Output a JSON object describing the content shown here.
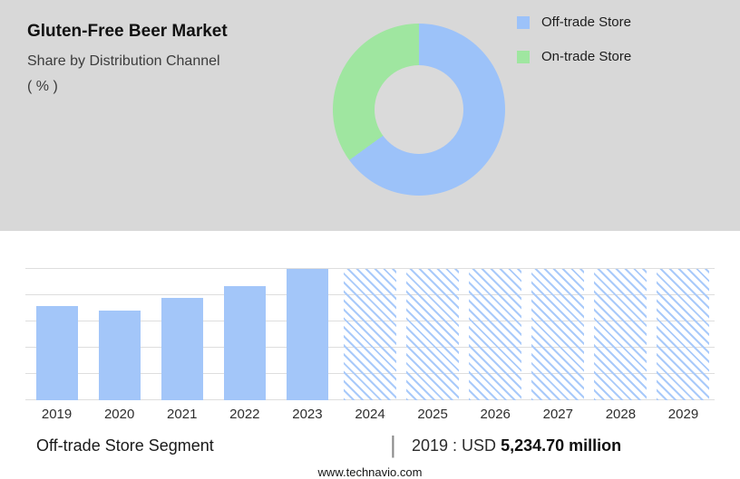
{
  "header": {
    "title": "Gluten-Free Beer Market",
    "subtitle": "Share by Distribution Channel",
    "unit": "( % )"
  },
  "legend": [
    {
      "label": "Off-trade Store",
      "color": "#9cc2f9"
    },
    {
      "label": "On-trade Store",
      "color": "#9fe6a0"
    }
  ],
  "footer": {
    "segment_label": "Off-trade Store Segment",
    "separator": "|",
    "value_prefix": "2019 : USD",
    "value_bold": "5,234.70 million",
    "website": "www.technavio.com"
  },
  "chart_data": [
    {
      "type": "pie",
      "subtype": "donut",
      "labels": [
        "Off-trade Store",
        "On-trade Store"
      ],
      "values": [
        65,
        35
      ],
      "unit": "%",
      "colors": [
        "#9cc2f9",
        "#9fe6a0"
      ],
      "legend_position": "right",
      "background": "#d8d8d8"
    },
    {
      "type": "bar",
      "categories": [
        "2019",
        "2020",
        "2021",
        "2022",
        "2023",
        "2024",
        "2025",
        "2026",
        "2027",
        "2028",
        "2029"
      ],
      "values": [
        5234.7,
        5000,
        5700,
        6360,
        7320,
        7320,
        7320,
        7320,
        7320,
        7320,
        7320
      ],
      "solid_categories": [
        "2019",
        "2020",
        "2021",
        "2022",
        "2023"
      ],
      "hatched_forecast_categories": [
        "2024",
        "2025",
        "2026",
        "2027",
        "2028",
        "2029"
      ],
      "title": "",
      "xlabel": "",
      "ylabel": "",
      "ylim": [
        0,
        7400
      ],
      "grid": true,
      "bar_color": "#a3c6f9",
      "hatch_color": "#a9cafa"
    }
  ]
}
